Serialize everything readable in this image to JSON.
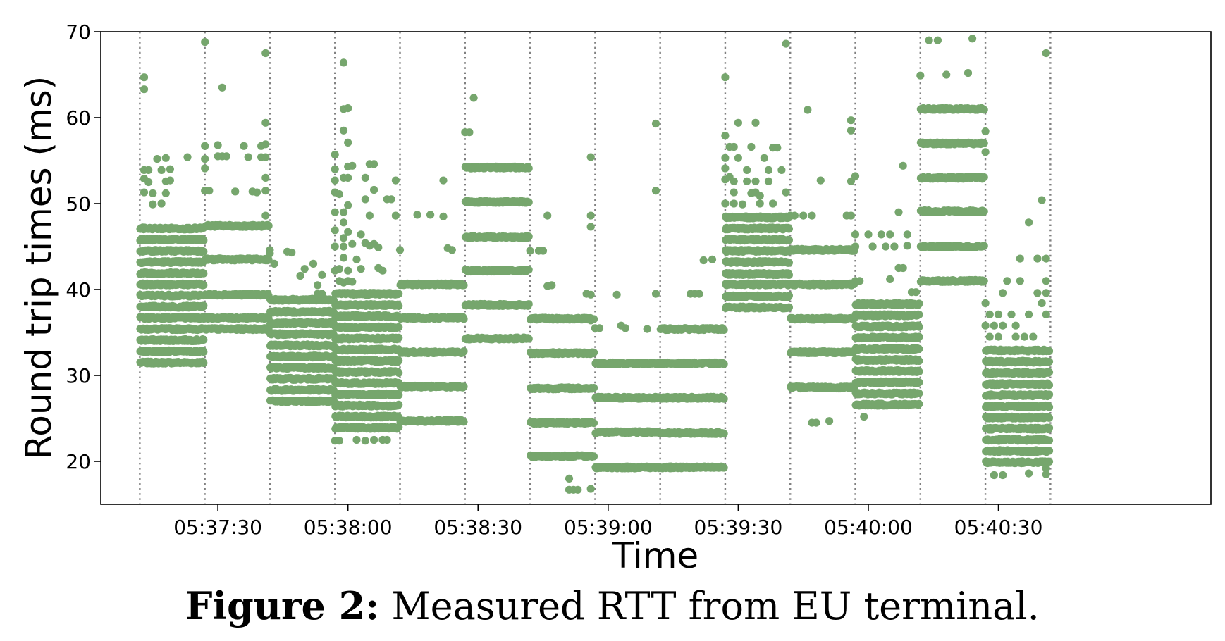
{
  "figure": {
    "label": "Figure 2:",
    "caption": "Measured RTT from EU terminal."
  },
  "colors": {
    "points": "#76a66d",
    "reconfig_lines": "#808080"
  },
  "chart_data": {
    "type": "scatter",
    "title": "",
    "xlabel": "Time",
    "ylabel": "Round trip times (ms)",
    "ylim": [
      15,
      70
    ],
    "xlim": [
      "05:37:03",
      "05:41:19"
    ],
    "yticks": [
      20,
      30,
      40,
      50,
      60,
      70
    ],
    "xticks": [
      "05:37:30",
      "05:38:00",
      "05:38:30",
      "05:39:00",
      "05:39:30",
      "05:40:00",
      "05:40:30"
    ],
    "grid": false,
    "legend": "none",
    "vertical_lines": [
      "05:37:12",
      "05:37:27",
      "05:37:42",
      "05:37:57",
      "05:38:12",
      "05:38:27",
      "05:38:42",
      "05:38:57",
      "05:39:12",
      "05:39:27",
      "05:39:42",
      "05:39:57",
      "05:40:12",
      "05:40:27",
      "05:40:42"
    ],
    "segments": [
      {
        "start": "05:37:12",
        "end": "05:37:27",
        "levels": [
          31.5,
          32.8,
          34.1,
          35.4,
          36.7,
          38.0,
          39.3,
          40.6,
          41.9,
          43.2,
          44.5,
          45.8,
          47.1
        ],
        "outliers": [
          [
            1,
            64.7
          ],
          [
            1,
            63.3
          ],
          [
            1,
            53.9
          ],
          [
            2,
            53.9
          ],
          [
            1,
            52.9
          ],
          [
            2,
            52.5
          ],
          [
            3,
            51.2
          ],
          [
            1,
            51.3
          ],
          [
            3,
            49.9
          ],
          [
            5,
            50.0
          ],
          [
            4,
            55.2
          ],
          [
            6,
            55.3
          ],
          [
            5,
            53.9
          ],
          [
            6,
            52.6
          ],
          [
            7,
            54.0
          ],
          [
            6,
            51.2
          ],
          [
            7,
            52.7
          ],
          [
            11,
            55.4
          ]
        ]
      },
      {
        "start": "05:37:27",
        "end": "05:37:42",
        "levels": [
          35.4,
          36.7,
          39.4,
          43.5,
          47.4
        ],
        "outliers": [
          [
            0,
            68.8
          ],
          [
            0,
            56.7
          ],
          [
            0,
            55.2
          ],
          [
            0,
            54.1
          ],
          [
            0,
            51.5
          ],
          [
            1,
            51.5
          ],
          [
            3,
            56.8
          ],
          [
            3,
            55.5
          ],
          [
            4,
            55.5
          ],
          [
            5,
            55.5
          ],
          [
            4,
            63.5
          ],
          [
            7,
            51.4
          ],
          [
            9,
            56.7
          ],
          [
            10,
            55.4
          ],
          [
            11,
            51.4
          ],
          [
            12,
            51.3
          ],
          [
            13,
            56.7
          ],
          [
            13,
            55.4
          ],
          [
            14,
            67.5
          ],
          [
            14,
            59.4
          ],
          [
            14,
            56.9
          ],
          [
            14,
            55.4
          ],
          [
            14,
            53.0
          ],
          [
            14,
            51.5
          ],
          [
            14,
            48.6
          ]
        ]
      },
      {
        "start": "05:37:42",
        "end": "05:37:57",
        "levels": [
          27.0,
          28.3,
          29.6,
          30.9,
          32.2,
          33.5,
          34.8,
          36.1,
          37.4,
          38.8
        ],
        "outliers": [
          [
            0,
            44.6
          ],
          [
            0,
            44.2
          ],
          [
            1,
            43.0
          ],
          [
            4,
            44.4
          ],
          [
            5,
            44.3
          ],
          [
            7,
            41.6
          ],
          [
            8,
            42.4
          ],
          [
            10,
            43.0
          ],
          [
            11,
            40.5
          ],
          [
            12,
            41.7
          ],
          [
            11,
            39.5
          ],
          [
            12,
            39.5
          ]
        ]
      },
      {
        "start": "05:37:57",
        "end": "05:38:12",
        "levels": [
          23.9,
          25.2,
          26.5,
          27.8,
          29.1,
          30.4,
          31.7,
          33.0,
          34.3,
          35.6,
          36.9,
          38.2,
          39.5
        ],
        "outliers": [
          [
            0,
            55.7
          ],
          [
            0,
            54.0
          ],
          [
            0,
            52.7
          ],
          [
            0,
            51.3
          ],
          [
            0,
            49.0
          ],
          [
            0,
            46.9
          ],
          [
            0,
            45.0
          ],
          [
            0,
            42.2
          ],
          [
            1,
            51.1
          ],
          [
            2,
            49.0
          ],
          [
            2,
            66.4
          ],
          [
            2,
            61.0
          ],
          [
            2,
            58.5
          ],
          [
            3,
            61.1
          ],
          [
            3,
            57.1
          ],
          [
            3,
            54.3
          ],
          [
            3,
            53.0
          ],
          [
            2,
            53.0
          ],
          [
            4,
            54.4
          ],
          [
            2,
            47.8
          ],
          [
            3,
            49.8
          ],
          [
            3,
            46.7
          ],
          [
            2,
            46.0
          ],
          [
            2,
            45.0
          ],
          [
            4,
            45.3
          ],
          [
            2,
            43.7
          ],
          [
            1,
            42.4
          ],
          [
            5,
            43.5
          ],
          [
            3,
            42.2
          ],
          [
            6,
            42.4
          ],
          [
            1,
            41.0
          ],
          [
            2,
            40.8
          ],
          [
            3,
            41.0
          ],
          [
            4,
            40.9
          ],
          [
            7,
            53.0
          ],
          [
            7,
            50.5
          ],
          [
            6,
            46.4
          ],
          [
            7,
            45.4
          ],
          [
            8,
            54.6
          ],
          [
            9,
            54.6
          ],
          [
            9,
            51.6
          ],
          [
            8,
            48.6
          ],
          [
            8,
            45.1
          ],
          [
            9,
            45.3
          ],
          [
            10,
            44.9
          ],
          [
            10,
            42.5
          ],
          [
            11,
            42.2
          ],
          [
            12,
            50.5
          ],
          [
            13,
            50.5
          ],
          [
            14,
            52.7
          ],
          [
            14,
            48.6
          ],
          [
            0,
            22.4
          ],
          [
            1,
            22.4
          ],
          [
            5,
            22.5
          ],
          [
            7,
            22.4
          ],
          [
            9,
            22.5
          ],
          [
            11,
            22.5
          ],
          [
            12,
            22.5
          ]
        ]
      },
      {
        "start": "05:38:12",
        "end": "05:38:27",
        "levels": [
          24.7,
          28.7,
          32.7,
          36.7,
          40.6
        ],
        "outliers": [
          [
            0,
            44.6
          ],
          [
            4,
            48.7
          ],
          [
            7,
            48.7
          ],
          [
            10,
            48.5
          ],
          [
            10,
            52.7
          ],
          [
            11,
            44.8
          ],
          [
            12,
            44.6
          ]
        ]
      },
      {
        "start": "05:38:27",
        "end": "05:38:42",
        "levels": [
          34.3,
          38.2,
          42.2,
          46.1,
          50.2,
          54.2
        ],
        "outliers": [
          [
            0,
            58.3
          ],
          [
            1,
            58.3
          ],
          [
            2,
            62.3
          ]
        ]
      },
      {
        "start": "05:38:42",
        "end": "05:38:57",
        "levels": [
          20.6,
          24.5,
          28.5,
          32.6,
          36.6
        ],
        "outliers": [
          [
            0,
            44.5
          ],
          [
            2,
            44.5
          ],
          [
            3,
            44.5
          ],
          [
            4,
            40.4
          ],
          [
            5,
            40.5
          ],
          [
            4,
            48.6
          ],
          [
            9,
            18.0
          ],
          [
            9,
            16.7
          ],
          [
            10,
            16.7
          ],
          [
            11,
            16.7
          ],
          [
            14,
            16.8
          ],
          [
            12,
            36.5
          ],
          [
            13,
            36.7
          ],
          [
            14,
            36.4
          ],
          [
            14,
            55.4
          ],
          [
            14,
            48.6
          ],
          [
            14,
            47.3
          ],
          [
            14,
            39.4
          ],
          [
            13,
            39.5
          ]
        ]
      },
      {
        "start": "05:38:57",
        "end": "05:39:12",
        "levels": [
          19.3,
          23.4,
          27.4,
          31.4
        ],
        "outliers": [
          [
            0,
            35.5
          ],
          [
            1,
            35.5
          ],
          [
            5,
            39.4
          ],
          [
            6,
            35.8
          ],
          [
            7,
            35.5
          ],
          [
            12,
            35.4
          ],
          [
            14,
            59.3
          ],
          [
            14,
            51.5
          ],
          [
            14,
            39.5
          ]
        ]
      },
      {
        "start": "05:39:12",
        "end": "05:39:27",
        "levels": [
          19.3,
          23.3,
          27.4,
          31.4,
          35.4
        ],
        "outliers": [
          [
            7,
            39.5
          ],
          [
            8,
            39.5
          ],
          [
            9,
            39.5
          ],
          [
            10,
            43.4
          ],
          [
            12,
            43.5
          ],
          [
            14,
            35.3
          ]
        ]
      },
      {
        "start": "05:39:27",
        "end": "05:39:42",
        "levels": [
          37.9,
          39.2,
          40.6,
          41.8,
          43.2,
          44.5,
          45.8,
          47.1,
          48.4
        ],
        "outliers": [
          [
            0,
            64.7
          ],
          [
            0,
            57.9
          ],
          [
            0,
            55.3
          ],
          [
            0,
            54.1
          ],
          [
            0,
            52.8
          ],
          [
            0,
            50.0
          ],
          [
            1,
            56.6
          ],
          [
            1,
            53.1
          ],
          [
            2,
            56.6
          ],
          [
            2,
            52.6
          ],
          [
            2,
            51.3
          ],
          [
            3,
            59.4
          ],
          [
            3,
            55.3
          ],
          [
            2,
            50.0
          ],
          [
            4,
            49.9
          ],
          [
            5,
            52.6
          ],
          [
            6,
            56.6
          ],
          [
            5,
            53.9
          ],
          [
            6,
            51.2
          ],
          [
            7,
            59.4
          ],
          [
            7,
            52.6
          ],
          [
            7,
            51.3
          ],
          [
            8,
            50.9
          ],
          [
            8,
            50.0
          ],
          [
            9,
            55.3
          ],
          [
            10,
            53.9
          ],
          [
            10,
            52.6
          ],
          [
            11,
            56.5
          ],
          [
            11,
            50.0
          ],
          [
            12,
            56.5
          ],
          [
            13,
            53.9
          ],
          [
            14,
            68.6
          ],
          [
            14,
            51.3
          ]
        ]
      },
      {
        "start": "05:39:42",
        "end": "05:39:57",
        "levels": [
          28.6,
          32.7,
          36.6,
          40.6,
          44.6
        ],
        "outliers": [
          [
            0,
            48.6
          ],
          [
            1,
            48.6
          ],
          [
            3,
            48.6
          ],
          [
            4,
            60.9
          ],
          [
            5,
            48.6
          ],
          [
            7,
            52.7
          ],
          [
            13,
            48.6
          ],
          [
            14,
            48.6
          ],
          [
            14,
            52.6
          ],
          [
            14,
            59.7
          ],
          [
            14,
            58.5
          ],
          [
            5,
            24.5
          ],
          [
            6,
            24.5
          ],
          [
            9,
            24.7
          ]
        ]
      },
      {
        "start": "05:39:57",
        "end": "05:40:12",
        "levels": [
          26.6,
          27.9,
          29.2,
          30.5,
          31.8,
          33.1,
          34.4,
          35.7,
          37.0,
          38.3
        ],
        "outliers": [
          [
            0,
            53.2
          ],
          [
            0,
            45.0
          ],
          [
            0,
            46.4
          ],
          [
            0,
            41.0
          ],
          [
            1,
            41.0
          ],
          [
            2,
            25.2
          ],
          [
            3,
            46.4
          ],
          [
            4,
            45.0
          ],
          [
            6,
            46.4
          ],
          [
            7,
            45.0
          ],
          [
            8,
            46.4
          ],
          [
            8,
            41.2
          ],
          [
            9,
            45.0
          ],
          [
            10,
            49.0
          ],
          [
            11,
            54.4
          ],
          [
            10,
            42.5
          ],
          [
            11,
            42.5
          ],
          [
            12,
            46.4
          ],
          [
            12,
            45.1
          ],
          [
            13,
            39.7
          ],
          [
            14,
            39.7
          ]
        ]
      },
      {
        "start": "05:40:12",
        "end": "05:40:27",
        "levels": [
          41.0,
          45.0,
          49.1,
          53.0,
          57.0,
          61.0
        ],
        "outliers": [
          [
            0,
            64.9
          ],
          [
            2,
            69.0
          ],
          [
            4,
            69.0
          ],
          [
            6,
            65.0
          ],
          [
            11,
            65.2
          ],
          [
            12,
            69.2
          ]
        ]
      },
      {
        "start": "05:40:27",
        "end": "05:40:42",
        "levels": [
          19.9,
          21.2,
          22.5,
          23.8,
          25.1,
          26.4,
          27.7,
          29.0,
          30.3,
          31.6,
          32.9
        ],
        "outliers": [
          [
            0,
            58.4
          ],
          [
            0,
            56.0
          ],
          [
            0,
            38.4
          ],
          [
            0,
            35.8
          ],
          [
            1,
            34.5
          ],
          [
            1,
            37.1
          ],
          [
            2,
            35.8
          ],
          [
            3,
            37.1
          ],
          [
            3,
            34.5
          ],
          [
            4,
            39.6
          ],
          [
            4,
            35.8
          ],
          [
            5,
            41.0
          ],
          [
            6,
            37.1
          ],
          [
            7,
            35.8
          ],
          [
            7,
            34.5
          ],
          [
            8,
            41.0
          ],
          [
            8,
            43.6
          ],
          [
            9,
            34.5
          ],
          [
            10,
            47.8
          ],
          [
            10,
            37.1
          ],
          [
            11,
            34.5
          ],
          [
            12,
            43.6
          ],
          [
            12,
            39.6
          ],
          [
            13,
            50.4
          ],
          [
            13,
            38.4
          ],
          [
            14,
            39.6
          ],
          [
            14,
            37.1
          ],
          [
            14,
            41.0
          ],
          [
            14,
            43.6
          ],
          [
            14,
            67.5
          ],
          [
            2,
            18.4
          ],
          [
            4,
            18.4
          ],
          [
            10,
            18.6
          ],
          [
            14,
            18.5
          ],
          [
            14,
            19.2
          ]
        ]
      }
    ]
  }
}
